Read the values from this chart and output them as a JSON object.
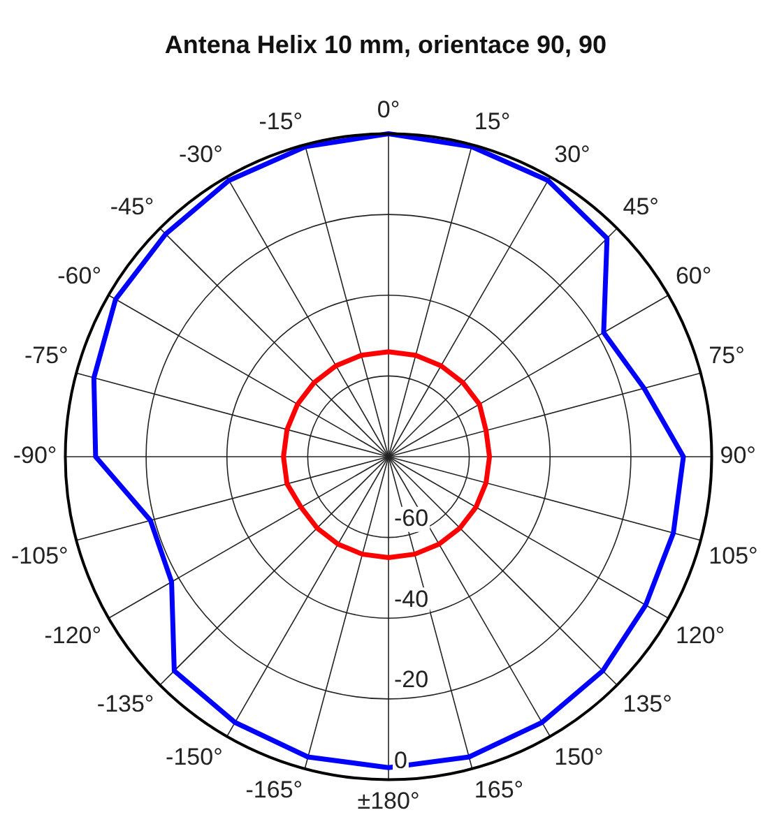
{
  "chart_data": {
    "type": "radar",
    "title": "Antena Helix 10 mm, orientace 90, 90",
    "categories": [
      "0°",
      "15°",
      "30°",
      "45°",
      "60°",
      "75°",
      "90°",
      "105°",
      "120°",
      "135°",
      "150°",
      "165°",
      "±180°",
      "-165°",
      "-150°",
      "-135°",
      "-120°",
      "-105°",
      "-90°",
      "-75°",
      "-60°",
      "-45°",
      "-30°",
      "-15°"
    ],
    "series": [
      {
        "color": "#0000ff",
        "values": [
          0,
          -0.5,
          -1,
          -3.5,
          -18.5,
          -14.5,
          -7,
          -7,
          -6.5,
          -5,
          -4,
          -3,
          -3,
          -3,
          -4,
          -5,
          -18,
          -19,
          -7.5,
          -4.5,
          -2,
          -2,
          -1,
          -0.5
        ]
      },
      {
        "color": "#ff0000",
        "values": [
          -54,
          -54,
          -54,
          -54,
          -54,
          -55,
          -55,
          -55,
          -55,
          -55,
          -55,
          -55,
          -55,
          -55,
          -55,
          -55,
          -55,
          -54,
          -54,
          -54,
          -54,
          -54,
          -54,
          -54
        ]
      }
    ],
    "ylim": [
      -80,
      0
    ],
    "yticks": [
      -60,
      -40,
      -20,
      0
    ],
    "grid": true,
    "marker": "none",
    "legend": false
  }
}
